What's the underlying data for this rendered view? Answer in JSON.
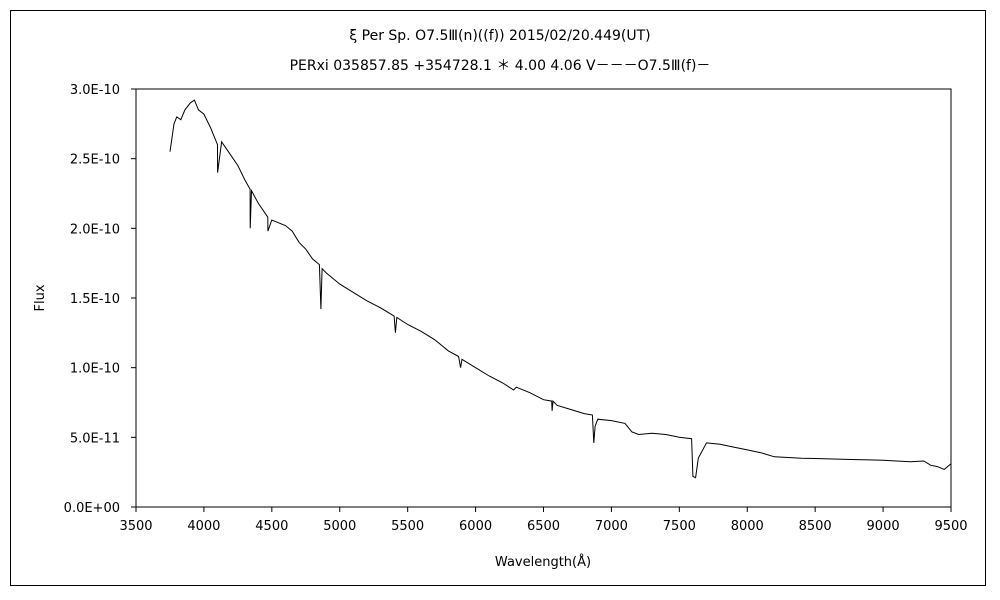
{
  "chart_data": {
    "type": "line",
    "title": "ξ Per    Sp. O7.5Ⅲ(n)((f))    2015/02/20.449(UT)",
    "subtitle": "PERxi 035857.85 +354728.1 ＊ 4.00 4.06 V－－－O7.5Ⅲ(f)－",
    "xlabel": "Wavelength(Å)",
    "ylabel": "Flux",
    "xlim": [
      3500,
      9500
    ],
    "ylim": [
      0,
      3e-10
    ],
    "x_ticks": [
      3500,
      4000,
      4500,
      5000,
      5500,
      6000,
      6500,
      7000,
      7500,
      8000,
      8500,
      9000,
      9500
    ],
    "x_tick_labels": [
      "3500",
      "4000",
      "4500",
      "5000",
      "5500",
      "6000",
      "6500",
      "7000",
      "7500",
      "8000",
      "8500",
      "9000",
      "9500"
    ],
    "y_ticks": [
      0,
      5e-11,
      1e-10,
      1.5e-10,
      2e-10,
      2.5e-10,
      3e-10
    ],
    "y_tick_labels": [
      "0.0E+00",
      "5.0E-11",
      "1.0E-10",
      "1.5E-10",
      "2.0E-10",
      "2.5E-10",
      "3.0E-10"
    ],
    "grid": false,
    "legend": "none",
    "line_color": "#000000",
    "series": [
      {
        "x": [
          3750,
          3780,
          3800,
          3830,
          3860,
          3900,
          3930,
          3960,
          4000,
          4050,
          4100,
          4101,
          4130,
          4180,
          4250,
          4300,
          4340,
          4341,
          4350,
          4400,
          4470,
          4471,
          4500,
          4550,
          4600,
          4650,
          4700,
          4750,
          4800,
          4850,
          4861,
          4870,
          4900,
          5000,
          5100,
          5200,
          5300,
          5400,
          5410,
          5420,
          5500,
          5600,
          5700,
          5800,
          5875,
          5890,
          5900,
          6000,
          6100,
          6200,
          6280,
          6300,
          6400,
          6500,
          6560,
          6563,
          6570,
          6600,
          6700,
          6800,
          6860,
          6870,
          6880,
          6900,
          7000,
          7100,
          7150,
          7200,
          7300,
          7400,
          7500,
          7590,
          7600,
          7620,
          7640,
          7700,
          7800,
          7900,
          8000,
          8100,
          8200,
          8300,
          8400,
          8500,
          8600,
          8700,
          8800,
          8900,
          9000,
          9100,
          9200,
          9300,
          9350,
          9400,
          9450,
          9500
        ],
        "y": [
          2.55e-10,
          2.75e-10,
          2.8e-10,
          2.78e-10,
          2.85e-10,
          2.9e-10,
          2.92e-10,
          2.85e-10,
          2.82e-10,
          2.72e-10,
          2.6e-10,
          2.4e-10,
          2.62e-10,
          2.55e-10,
          2.45e-10,
          2.35e-10,
          2.28e-10,
          2e-10,
          2.27e-10,
          2.18e-10,
          2.08e-10,
          1.98e-10,
          2.06e-10,
          2.04e-10,
          2.02e-10,
          1.98e-10,
          1.9e-10,
          1.85e-10,
          1.78e-10,
          1.74e-10,
          1.42e-10,
          1.71e-10,
          1.68e-10,
          1.6e-10,
          1.54e-10,
          1.48e-10,
          1.43e-10,
          1.37e-10,
          1.25e-10,
          1.36e-10,
          1.31e-10,
          1.26e-10,
          1.2e-10,
          1.12e-10,
          1.08e-10,
          1e-10,
          1.06e-10,
          1e-10,
          9.4e-11,
          8.9e-11,
          8.4e-11,
          8.6e-11,
          8.2e-11,
          7.7e-11,
          7.6e-11,
          6.9e-11,
          7.6e-11,
          7.3e-11,
          7e-11,
          6.7e-11,
          6.6e-11,
          4.6e-11,
          5.8e-11,
          6.3e-11,
          6.2e-11,
          6e-11,
          5.4e-11,
          5.2e-11,
          5.3e-11,
          5.2e-11,
          5e-11,
          4.9e-11,
          2.2e-11,
          2.1e-11,
          3.5e-11,
          4.6e-11,
          4.5e-11,
          4.3e-11,
          4.1e-11,
          3.9e-11,
          3.6e-11,
          3.55e-11,
          3.5e-11,
          3.48e-11,
          3.45e-11,
          3.42e-11,
          3.4e-11,
          3.38e-11,
          3.35e-11,
          3.3e-11,
          3.25e-11,
          3.3e-11,
          3e-11,
          2.9e-11,
          2.7e-11,
          3.1e-11
        ]
      }
    ]
  }
}
